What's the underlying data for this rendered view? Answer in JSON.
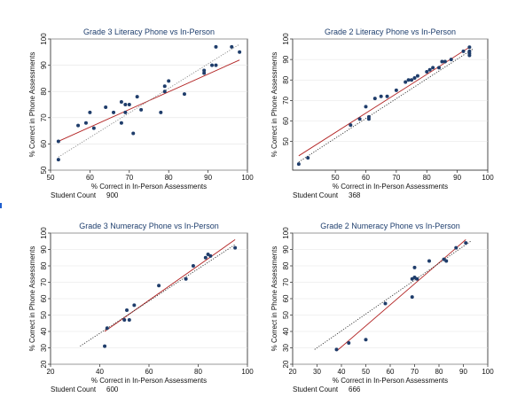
{
  "chart_data": [
    {
      "type": "scatter",
      "title": "Grade 3 Literacy Phone vs In-Person",
      "xlabel": "% Correct in In-Person Assessments",
      "ylabel": "% Correct in Phone Assessments",
      "xlim": [
        50,
        100
      ],
      "ylim": [
        50,
        100
      ],
      "xticks": [
        50,
        60,
        70,
        80,
        90,
        100
      ],
      "yticks": [
        50,
        60,
        70,
        80,
        90,
        100
      ],
      "count_label": "Student Count",
      "count_value": "900",
      "points": [
        [
          52,
          61
        ],
        [
          52,
          54
        ],
        [
          57,
          67
        ],
        [
          59,
          68
        ],
        [
          60,
          72
        ],
        [
          61,
          66
        ],
        [
          64,
          74
        ],
        [
          66,
          72
        ],
        [
          68,
          76
        ],
        [
          69,
          75
        ],
        [
          68,
          68
        ],
        [
          70,
          75
        ],
        [
          71,
          64
        ],
        [
          69,
          72
        ],
        [
          72,
          78
        ],
        [
          73,
          73
        ],
        [
          78,
          72
        ],
        [
          79,
          82
        ],
        [
          79,
          80
        ],
        [
          80,
          84
        ],
        [
          84,
          79
        ],
        [
          89,
          87
        ],
        [
          89,
          88
        ],
        [
          91,
          90
        ],
        [
          92,
          90
        ],
        [
          92,
          97
        ],
        [
          96,
          97
        ],
        [
          98,
          95
        ]
      ],
      "fit_lines": [
        {
          "style": "solid",
          "color": "#b22222",
          "from": [
            52,
            61
          ],
          "to": [
            98,
            92
          ]
        },
        {
          "style": "dotted",
          "color": "#888888",
          "from": [
            52,
            55
          ],
          "to": [
            98,
            98
          ]
        }
      ]
    },
    {
      "type": "scatter",
      "title": "Grade 2 Literacy Phone vs In-Person",
      "xlabel": "% Correct in In-Person Assessments",
      "ylabel": "% Correct in Phone Assessments",
      "xlim": [
        36,
        100
      ],
      "ylim": [
        36,
        100
      ],
      "xticks": [
        50,
        60,
        70,
        80,
        90,
        100
      ],
      "yticks": [
        50,
        60,
        70,
        80,
        90,
        100
      ],
      "count_label": "Student Count",
      "count_value": "368",
      "points": [
        [
          38,
          39
        ],
        [
          41,
          42
        ],
        [
          55,
          58
        ],
        [
          58,
          61
        ],
        [
          60,
          67
        ],
        [
          61,
          61
        ],
        [
          61,
          62
        ],
        [
          63,
          71
        ],
        [
          65,
          72
        ],
        [
          67,
          72
        ],
        [
          70,
          75
        ],
        [
          73,
          79
        ],
        [
          74,
          80
        ],
        [
          75,
          80
        ],
        [
          76,
          81
        ],
        [
          77,
          82
        ],
        [
          80,
          84
        ],
        [
          81,
          85
        ],
        [
          82,
          86
        ],
        [
          84,
          86
        ],
        [
          85,
          89
        ],
        [
          86,
          89
        ],
        [
          88,
          90
        ],
        [
          92,
          94
        ],
        [
          94,
          94
        ],
        [
          94,
          96
        ],
        [
          94,
          93
        ],
        [
          94,
          92
        ]
      ],
      "fit_lines": [
        {
          "style": "solid",
          "color": "#b22222",
          "from": [
            38,
            43
          ],
          "to": [
            94,
            96
          ]
        },
        {
          "style": "dotted",
          "color": "#333333",
          "from": [
            38,
            40
          ],
          "to": [
            95,
            95
          ]
        }
      ]
    },
    {
      "type": "scatter",
      "title": "Grade 3 Numeracy Phone vs In-Person",
      "xlabel": "% Correct in In-Person Assessments",
      "ylabel": "% Correct in Phone Assessments",
      "xlim": [
        20,
        100
      ],
      "ylim": [
        20,
        100
      ],
      "xticks": [
        20,
        40,
        60,
        80,
        100
      ],
      "yticks": [
        20,
        30,
        40,
        50,
        60,
        70,
        80,
        90,
        100
      ],
      "count_label": "Student Count",
      "count_value": "600",
      "points": [
        [
          42,
          31
        ],
        [
          43,
          42
        ],
        [
          50,
          47
        ],
        [
          51,
          53
        ],
        [
          52,
          47
        ],
        [
          54,
          56
        ],
        [
          64,
          68
        ],
        [
          75,
          72
        ],
        [
          78,
          80
        ],
        [
          83,
          85
        ],
        [
          84,
          87
        ],
        [
          85,
          86
        ],
        [
          95,
          91
        ]
      ],
      "fit_lines": [
        {
          "style": "solid",
          "color": "#b22222",
          "from": [
            42,
            40
          ],
          "to": [
            95,
            96
          ]
        },
        {
          "style": "dotted",
          "color": "#333333",
          "from": [
            32,
            31
          ],
          "to": [
            95,
            93
          ]
        }
      ]
    },
    {
      "type": "scatter",
      "title": "Grade 2 Numeracy Phone vs In-Person",
      "xlabel": "% Correct in In-Person Assessments",
      "ylabel": "% Correct in Phone Assessments",
      "xlim": [
        20,
        100
      ],
      "ylim": [
        20,
        100
      ],
      "xticks": [
        20,
        30,
        40,
        50,
        60,
        70,
        80,
        90,
        100
      ],
      "yticks": [
        20,
        30,
        40,
        50,
        60,
        70,
        80,
        90,
        100
      ],
      "count_label": "Student Count",
      "count_value": "666",
      "points": [
        [
          38,
          29
        ],
        [
          43,
          33
        ],
        [
          50,
          35
        ],
        [
          58,
          57
        ],
        [
          69,
          61
        ],
        [
          69,
          72
        ],
        [
          70,
          73
        ],
        [
          70,
          79
        ],
        [
          71,
          72
        ],
        [
          76,
          83
        ],
        [
          82,
          84
        ],
        [
          83,
          83
        ],
        [
          87,
          91
        ],
        [
          91,
          94
        ]
      ],
      "fit_lines": [
        {
          "style": "solid",
          "color": "#b22222",
          "from": [
            38,
            28
          ],
          "to": [
            91,
            96
          ]
        },
        {
          "style": "dotted",
          "color": "#333333",
          "from": [
            29,
            29
          ],
          "to": [
            93,
            95
          ]
        }
      ]
    }
  ]
}
